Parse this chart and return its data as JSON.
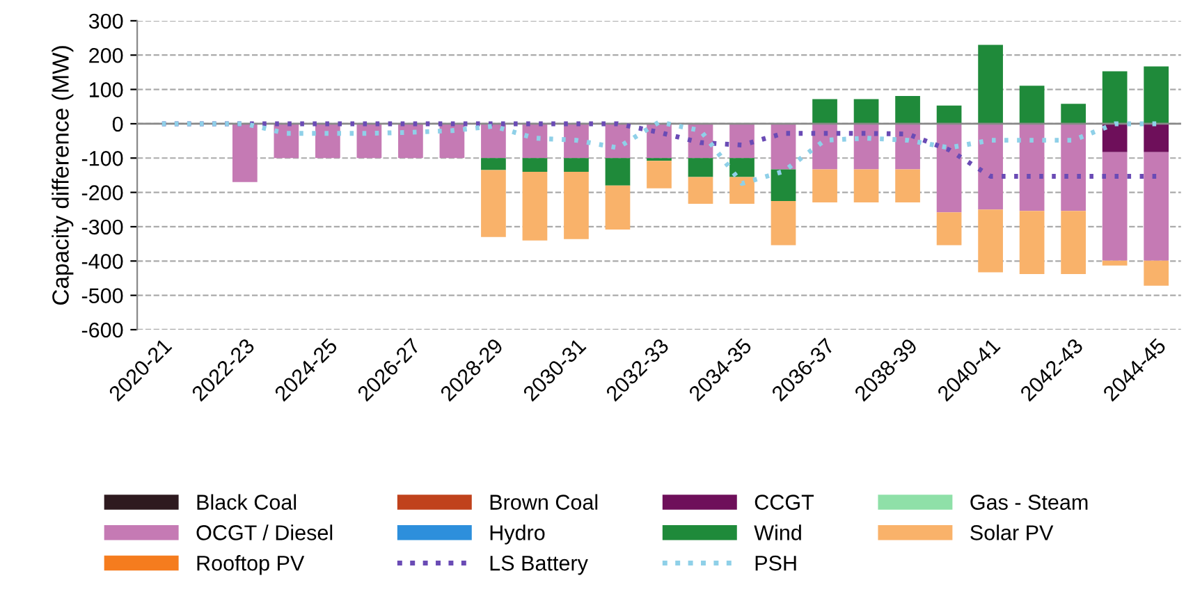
{
  "chart_data": {
    "type": "bar",
    "stacked": true,
    "ylabel": "Capacity difference (MW)",
    "categories": [
      "2020-21",
      null,
      "2022-23",
      null,
      "2024-25",
      null,
      "2026-27",
      null,
      "2028-29",
      null,
      "2030-31",
      null,
      "2032-33",
      null,
      "2034-35",
      null,
      "2036-37",
      null,
      "2038-39",
      null,
      "2040-41",
      null,
      "2042-43",
      null,
      "2044-45"
    ],
    "ylim": [
      -600,
      300
    ],
    "yticks": [
      -600,
      -500,
      -400,
      -300,
      -200,
      -100,
      0,
      100,
      200,
      300
    ],
    "grid": "y",
    "legend": "bottom",
    "series": [
      {
        "name": "Black Coal",
        "color": "#2e1a1f",
        "values": [
          null,
          null,
          null,
          null,
          null,
          null,
          null,
          null,
          null,
          null,
          null,
          null,
          null,
          null,
          null,
          null,
          null,
          null,
          null,
          null,
          null,
          null,
          null,
          null,
          null
        ]
      },
      {
        "name": "Brown Coal",
        "color": "#c0421c",
        "values": [
          null,
          null,
          null,
          null,
          null,
          null,
          null,
          null,
          null,
          null,
          null,
          null,
          null,
          null,
          null,
          null,
          null,
          null,
          null,
          null,
          null,
          null,
          null,
          null,
          null
        ]
      },
      {
        "name": "CCGT",
        "color": "#6e0f5a",
        "values": [
          null,
          null,
          null,
          null,
          null,
          null,
          null,
          null,
          null,
          null,
          null,
          null,
          null,
          null,
          null,
          null,
          null,
          null,
          null,
          null,
          null,
          null,
          null,
          -83,
          -83
        ]
      },
      {
        "name": "Gas - Steam",
        "color": "#8fe0a8",
        "values": [
          null,
          null,
          null,
          null,
          null,
          null,
          null,
          null,
          null,
          null,
          null,
          null,
          null,
          null,
          null,
          null,
          null,
          null,
          null,
          null,
          null,
          null,
          null,
          null,
          null
        ]
      },
      {
        "name": "OCGT / Diesel",
        "color": "#c57ab4",
        "values": [
          null,
          null,
          -170,
          -100,
          -100,
          -100,
          -100,
          -100,
          -100,
          -100,
          -100,
          -100,
          -100,
          -100,
          -100,
          -133,
          -133,
          -133,
          -133,
          -258,
          -250,
          -254,
          -254,
          -316,
          -316
        ]
      },
      {
        "name": "Hydro",
        "color": "#2d8fdc",
        "values": [
          null,
          null,
          null,
          null,
          null,
          null,
          null,
          null,
          null,
          null,
          null,
          null,
          null,
          null,
          null,
          null,
          null,
          null,
          null,
          null,
          null,
          null,
          null,
          null,
          null
        ]
      },
      {
        "name": "Wind",
        "color": "#1f8a3a",
        "values": [
          null,
          null,
          null,
          null,
          null,
          null,
          null,
          null,
          -35,
          -40,
          -40,
          -80,
          -8,
          -55,
          -55,
          -92,
          72,
          72,
          81,
          53,
          230,
          111,
          58,
          153,
          167
        ]
      },
      {
        "name": "Solar PV",
        "color": "#f9b26a",
        "values": [
          null,
          null,
          null,
          null,
          null,
          null,
          null,
          null,
          -195,
          -200,
          -196,
          -128,
          -80,
          -78,
          -78,
          -129,
          -96,
          -96,
          -96,
          -96,
          -183,
          -184,
          -184,
          -14,
          -73
        ]
      },
      {
        "name": "Rooftop PV",
        "color": "#f57c1e",
        "values": [
          null,
          null,
          null,
          null,
          null,
          null,
          null,
          null,
          null,
          null,
          null,
          null,
          null,
          null,
          null,
          null,
          null,
          null,
          null,
          null,
          null,
          null,
          null,
          null,
          null
        ]
      },
      {
        "name": "LS Battery",
        "type": "line",
        "line_style": "dotted",
        "color": "#6a4bb5",
        "values": [
          0,
          0,
          0,
          0,
          0,
          0,
          0,
          0,
          0,
          0,
          0,
          0,
          -25,
          -55,
          -62,
          -28,
          -28,
          -28,
          -30,
          -76,
          -153,
          -153,
          -153,
          -153,
          -153
        ]
      },
      {
        "name": "PSH",
        "type": "line",
        "line_style": "dotted",
        "color": "#8fd0e8",
        "values": [
          0,
          0,
          0,
          -28,
          -28,
          -28,
          -25,
          -20,
          -7,
          -42,
          -48,
          -70,
          5,
          -20,
          -174,
          -139,
          -48,
          -42,
          -48,
          -70,
          -48,
          -48,
          -48,
          0,
          0
        ]
      }
    ]
  }
}
